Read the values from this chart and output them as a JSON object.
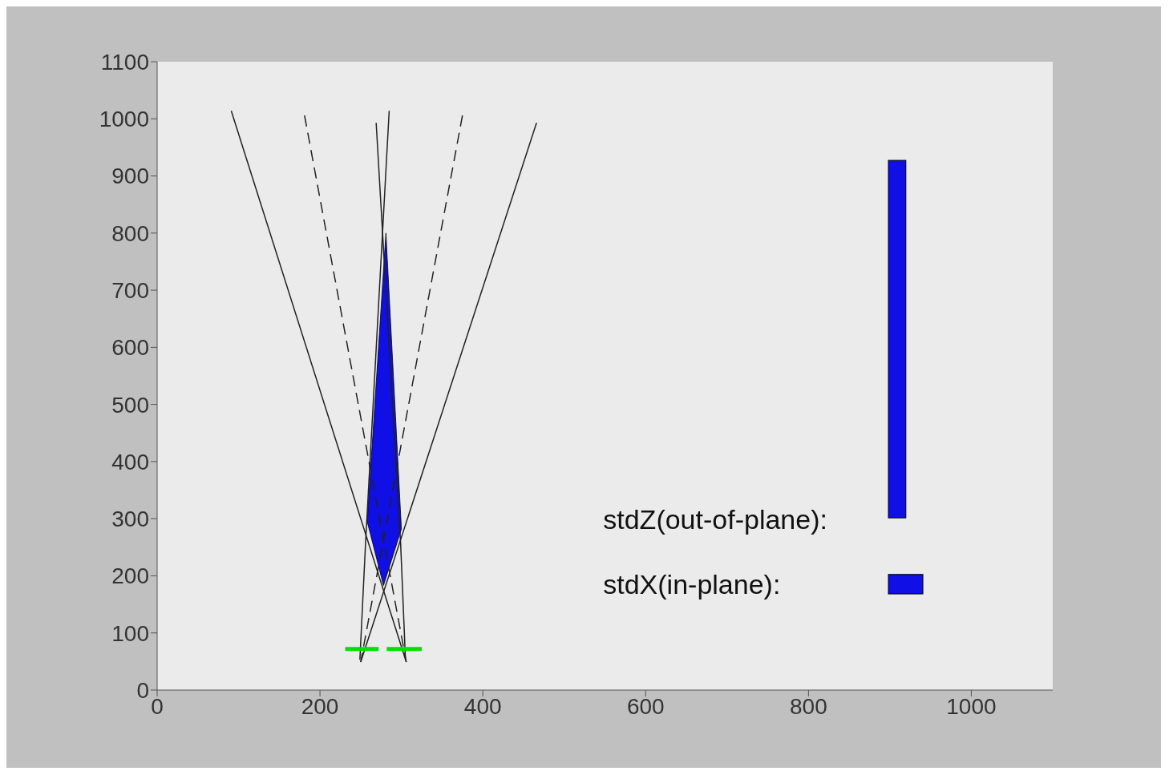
{
  "chart_data": {
    "type": "line",
    "xlim": [
      0,
      1100
    ],
    "ylim": [
      0,
      1100
    ],
    "xticks": [
      0,
      200,
      400,
      600,
      800,
      1000
    ],
    "yticks": [
      0,
      100,
      200,
      300,
      400,
      500,
      600,
      700,
      800,
      900,
      1000,
      1100
    ],
    "marker": "none",
    "annotations": [
      "stdZ(out-of-plane):",
      "stdX(in-plane):"
    ],
    "series": [
      {
        "color": "#222222",
        "line_style": "solid",
        "x": [
          91,
          306
        ],
        "values": [
          1014,
          49
        ]
      },
      {
        "color": "#222222",
        "line_style": "solid",
        "x": [
          466,
          250
        ],
        "values": [
          993,
          49
        ]
      },
      {
        "color": "#222222",
        "line_style": "dashed",
        "x": [
          181,
          306
        ],
        "values": [
          1006,
          49
        ]
      },
      {
        "color": "#222222",
        "line_style": "dashed",
        "x": [
          375,
          250
        ],
        "values": [
          1006,
          49
        ]
      },
      {
        "color": "#222222",
        "line_style": "solid",
        "x": [
          269,
          299,
          305
        ],
        "values": [
          993,
          258,
          53
        ]
      },
      {
        "color": "#222222",
        "line_style": "solid",
        "x": [
          285,
          256,
          249
        ],
        "values": [
          1014,
          258,
          53
        ]
      },
      {
        "type": "area",
        "color": "#0f0fe6",
        "x": [
          281,
          258,
          278,
          300,
          281
        ],
        "values": [
          800,
          295,
          183,
          282,
          800
        ]
      },
      {
        "color": "#00e000",
        "line_style": "solid",
        "x": [
          231,
          272
        ],
        "values": [
          72,
          72
        ]
      },
      {
        "color": "#00e000",
        "line_style": "solid",
        "x": [
          282,
          325
        ],
        "values": [
          72,
          72
        ]
      }
    ]
  }
}
